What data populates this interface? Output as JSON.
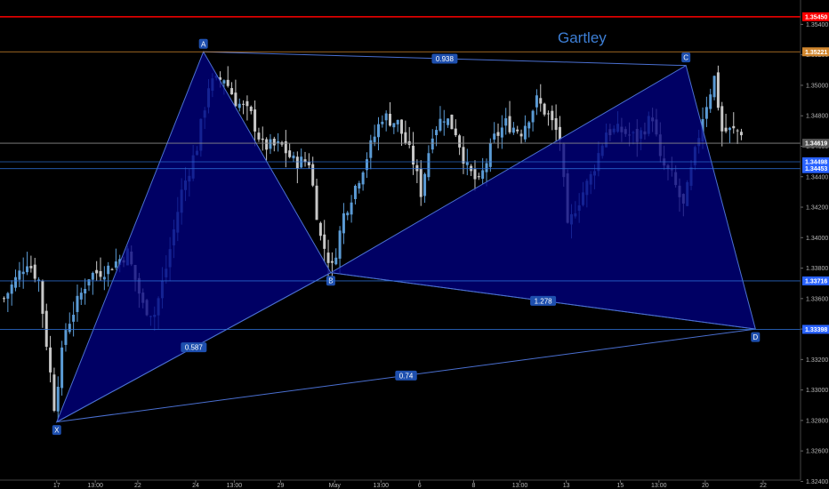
{
  "chart_data": {
    "type": "candlestick",
    "title": "Gartley",
    "colors": {
      "background": "#000000",
      "candle_up": "#5b9bd5",
      "candle_down": "#c8c8c8",
      "pattern_fill": "#000080",
      "pattern_line": "#4a6fd0",
      "label_fill": "#1e4fae",
      "price_badge": "#2962ff",
      "top_line": "#ff0000",
      "line_c": "#d0862e",
      "line_current": "#8a8a8a",
      "line_levels": "#2e6fd6"
    },
    "y_axis": {
      "range": [
        1.3235,
        1.3556
      ],
      "ticks": [
        "1.35400",
        "1.35200",
        "1.35000",
        "1.34800",
        "1.34600",
        "1.34400",
        "1.34200",
        "1.34000",
        "1.33800",
        "1.33600",
        "1.33400",
        "1.33200",
        "1.33000",
        "1.32800",
        "1.32600",
        "1.32400"
      ]
    },
    "x_axis": {
      "bar_count": 206,
      "ticks": [
        {
          "label": "17",
          "bar": 14
        },
        {
          "label": "13:00",
          "bar": 24
        },
        {
          "label": "22",
          "bar": 35
        },
        {
          "label": "24",
          "bar": 50
        },
        {
          "label": "13:00",
          "bar": 60
        },
        {
          "label": "29",
          "bar": 72
        },
        {
          "label": "May",
          "bar": 86
        },
        {
          "label": "13:00",
          "bar": 98
        },
        {
          "label": "6",
          "bar": 108
        },
        {
          "label": "8",
          "bar": 122
        },
        {
          "label": "13:00",
          "bar": 134
        },
        {
          "label": "13",
          "bar": 146
        },
        {
          "label": "15",
          "bar": 160
        },
        {
          "label": "13:00",
          "bar": 170
        },
        {
          "label": "20",
          "bar": 182
        },
        {
          "label": "22",
          "bar": 197
        }
      ]
    },
    "pattern": {
      "name": "Gartley",
      "points": [
        {
          "label": "X",
          "bar": 14,
          "price": 1.3279
        },
        {
          "label": "A",
          "bar": 52,
          "price": 1.3522
        },
        {
          "label": "B",
          "bar": 85,
          "price": 1.3377
        },
        {
          "label": "C",
          "bar": 177,
          "price": 1.3513
        },
        {
          "label": "D",
          "bar": 195,
          "price": 1.334
        }
      ],
      "ratios": [
        {
          "label": "0.587",
          "from": "X",
          "to": "B"
        },
        {
          "label": "0.938",
          "from": "A",
          "to": "C"
        },
        {
          "label": "1.278",
          "from": "B",
          "to": "D"
        },
        {
          "label": "0.74",
          "from": "X",
          "to": "D"
        }
      ]
    },
    "horizontal_lines": [
      {
        "price": 1.3545,
        "label": "1.35450",
        "role": "top"
      },
      {
        "price": 1.3522,
        "label": "1.35221",
        "role": "c"
      },
      {
        "price": 1.3462,
        "label": "1.34619",
        "role": "current"
      },
      {
        "price": 1.34498,
        "label": "1.34498",
        "role": "level"
      },
      {
        "price": 1.34453,
        "label": "1.34453",
        "role": "level"
      },
      {
        "price": 1.33716,
        "label": "1.33716",
        "role": "level"
      },
      {
        "price": 1.33398,
        "label": "1.33398",
        "role": "level"
      }
    ],
    "segments": [
      [
        0,
        1.336
      ],
      [
        6,
        1.3385
      ],
      [
        9,
        1.3372
      ],
      [
        13,
        1.329
      ],
      [
        16,
        1.334
      ],
      [
        22,
        1.3375
      ],
      [
        27,
        1.338
      ],
      [
        32,
        1.339
      ],
      [
        36,
        1.3355
      ],
      [
        39,
        1.335
      ],
      [
        42,
        1.338
      ],
      [
        46,
        1.343
      ],
      [
        50,
        1.346
      ],
      [
        53,
        1.35
      ],
      [
        57,
        1.3505
      ],
      [
        60,
        1.349
      ],
      [
        64,
        1.348
      ],
      [
        67,
        1.346
      ],
      [
        72,
        1.346
      ],
      [
        75,
        1.345
      ],
      [
        79,
        1.345
      ],
      [
        82,
        1.34
      ],
      [
        85,
        1.338
      ],
      [
        88,
        1.3415
      ],
      [
        92,
        1.344
      ],
      [
        95,
        1.346
      ],
      [
        98,
        1.348
      ],
      [
        102,
        1.3475
      ],
      [
        106,
        1.345
      ],
      [
        108,
        1.343
      ],
      [
        111,
        1.347
      ],
      [
        114,
        1.348
      ],
      [
        117,
        1.347
      ],
      [
        120,
        1.3445
      ],
      [
        123,
        1.3435
      ],
      [
        127,
        1.3465
      ],
      [
        130,
        1.3475
      ],
      [
        134,
        1.347
      ],
      [
        138,
        1.349
      ],
      [
        141,
        1.348
      ],
      [
        144,
        1.3465
      ],
      [
        146,
        1.3405
      ],
      [
        148,
        1.342
      ],
      [
        152,
        1.344
      ],
      [
        156,
        1.347
      ],
      [
        160,
        1.347
      ],
      [
        164,
        1.3465
      ],
      [
        168,
        1.348
      ],
      [
        170,
        1.345
      ],
      [
        173,
        1.344
      ],
      [
        176,
        1.342
      ],
      [
        179,
        1.3455
      ],
      [
        181,
        1.348
      ],
      [
        184,
        1.3505
      ],
      [
        186,
        1.347
      ]
    ]
  }
}
